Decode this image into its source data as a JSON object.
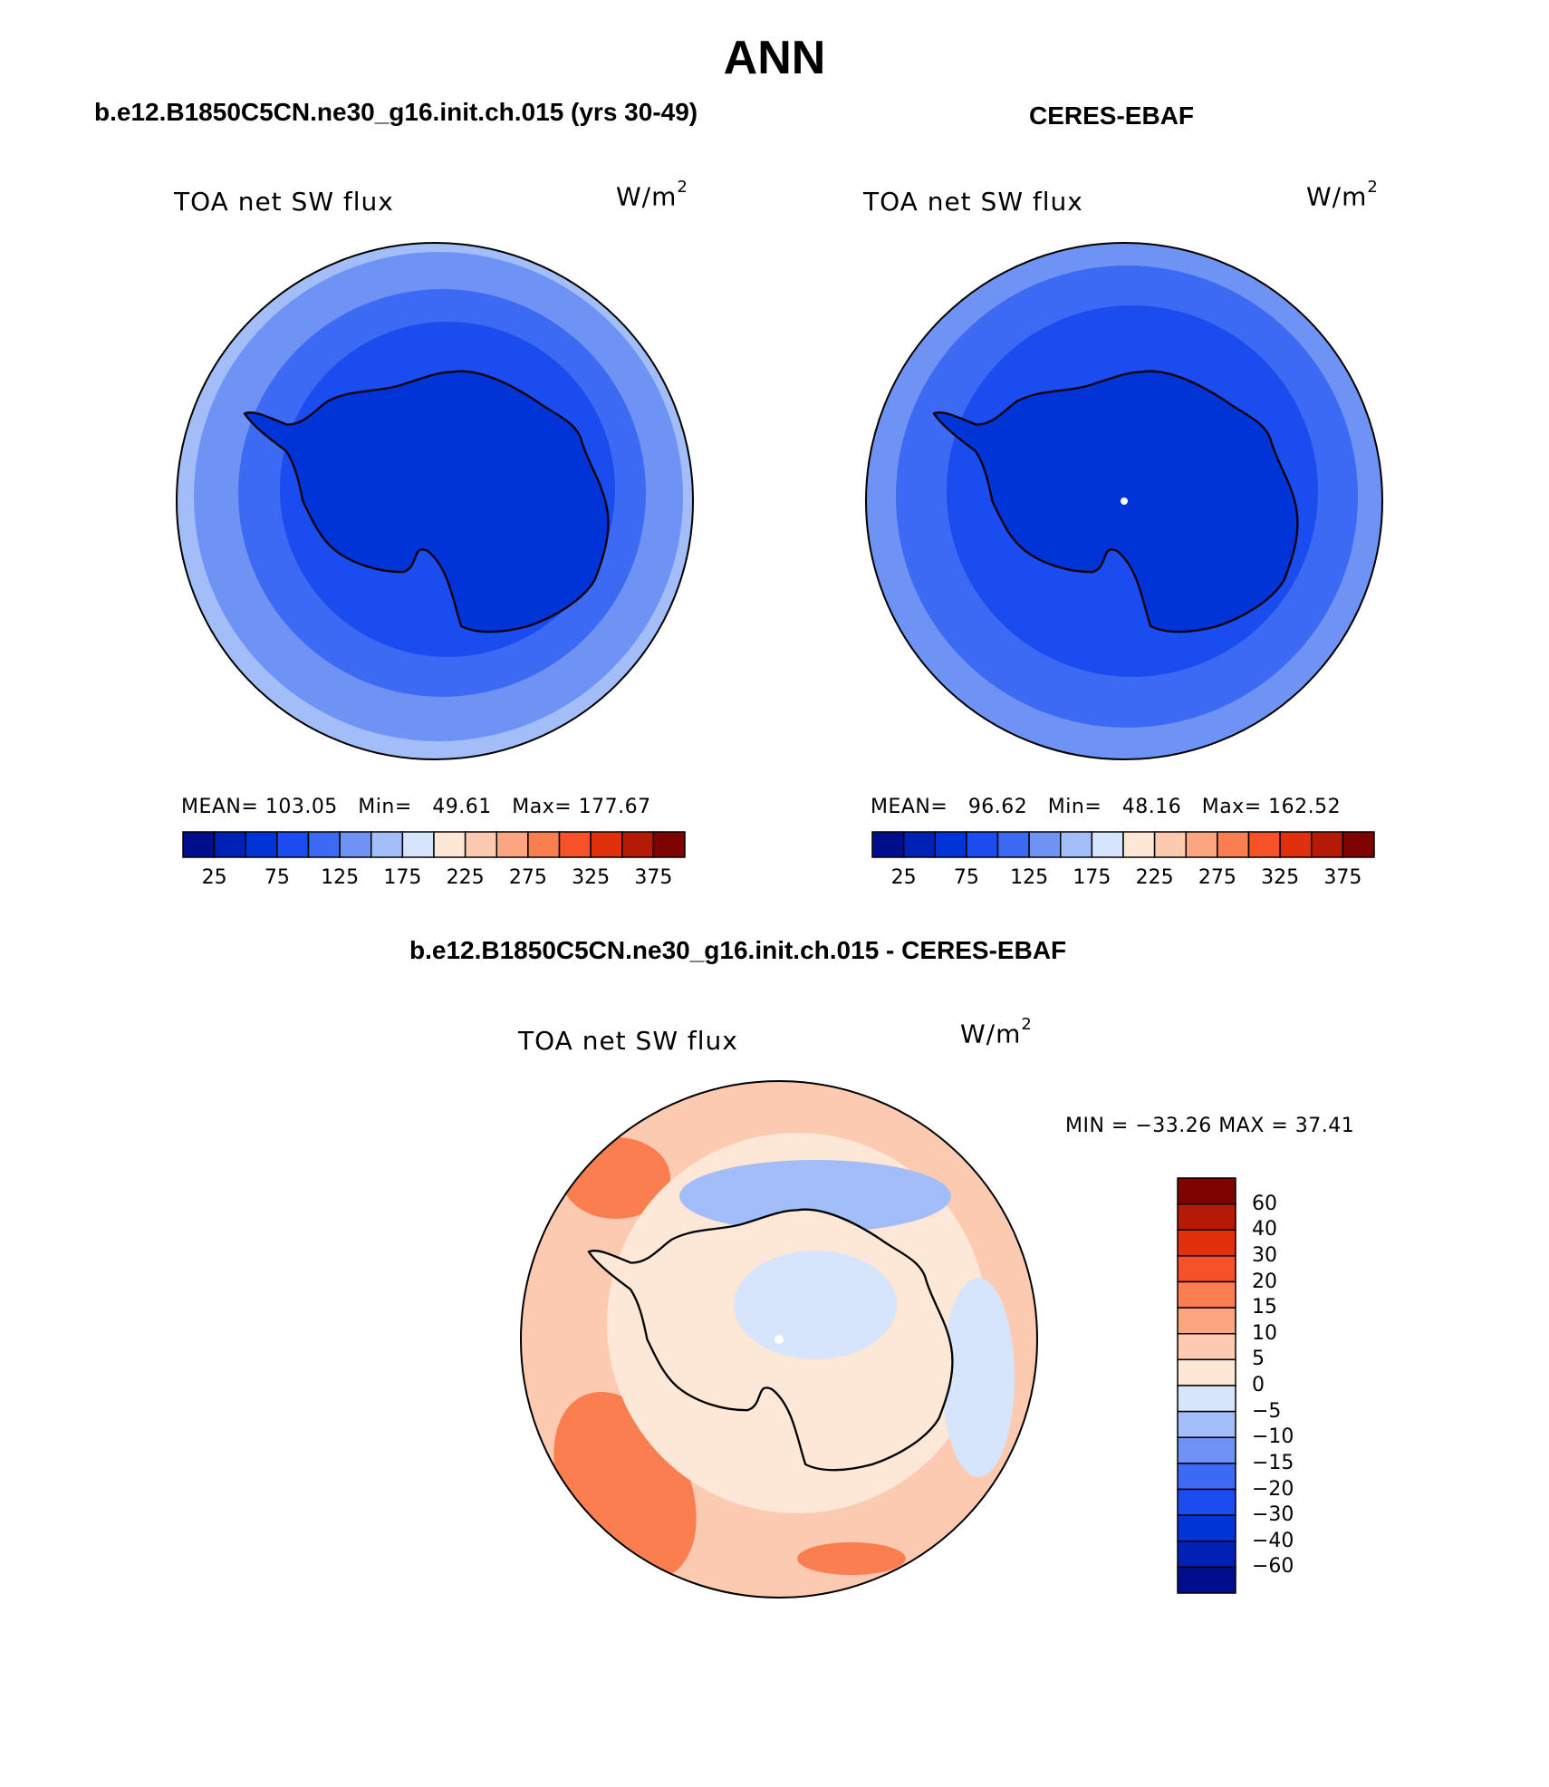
{
  "main_title": "ANN",
  "panels": [
    {
      "title": "b.e12.B1850C5CN.ne30_g16.init.ch.015 (yrs 30-49)",
      "variable": "TOA net SW flux",
      "units": "W/m",
      "units_sup": "2",
      "stats": {
        "mean_label": "MEAN=",
        "mean": "103.05",
        "min_label": "Min=",
        "min": "49.61",
        "max_label": "Max=",
        "max": "177.67"
      }
    },
    {
      "title": "CERES-EBAF",
      "variable": "TOA net SW flux",
      "units": "W/m",
      "units_sup": "2",
      "stats": {
        "mean_label": "MEAN=",
        "mean": "96.62",
        "min_label": "Min=",
        "min": "48.16",
        "max_label": "Max=",
        "max": "162.52"
      }
    }
  ],
  "diff_panel": {
    "title": "b.e12.B1850C5CN.ne30_g16.init.ch.015 - CERES-EBAF",
    "variable": "TOA net SW flux",
    "units": "W/m",
    "units_sup": "2",
    "minmax": "MIN = −33.26 MAX =   37.41"
  },
  "colorbar_abs": {
    "labels": [
      "25",
      "75",
      "125",
      "175",
      "225",
      "275",
      "325",
      "375"
    ],
    "colors": [
      "#000e8c",
      "#0021b5",
      "#0034d7",
      "#1a4cf0",
      "#3d6af2",
      "#6e93f5",
      "#a3bdf8",
      "#d6e5fb",
      "#fde7d6",
      "#fccab0",
      "#fba680",
      "#fa7e50",
      "#f5522a",
      "#e0300c",
      "#b51a06",
      "#7f0400"
    ]
  },
  "colorbar_diff": {
    "labels": [
      "60",
      "40",
      "30",
      "20",
      "15",
      "10",
      "5",
      "0",
      "−5",
      "−10",
      "−15",
      "−20",
      "−30",
      "−40",
      "−60"
    ],
    "colors": [
      "#7f0400",
      "#b51a06",
      "#e0300c",
      "#f5522a",
      "#fa7e50",
      "#fba680",
      "#fccab0",
      "#fde7d6",
      "#d6e5fb",
      "#a3bdf8",
      "#6e93f5",
      "#3d6af2",
      "#1a4cf0",
      "#0034d7",
      "#0021b5",
      "#000e8c"
    ]
  }
}
